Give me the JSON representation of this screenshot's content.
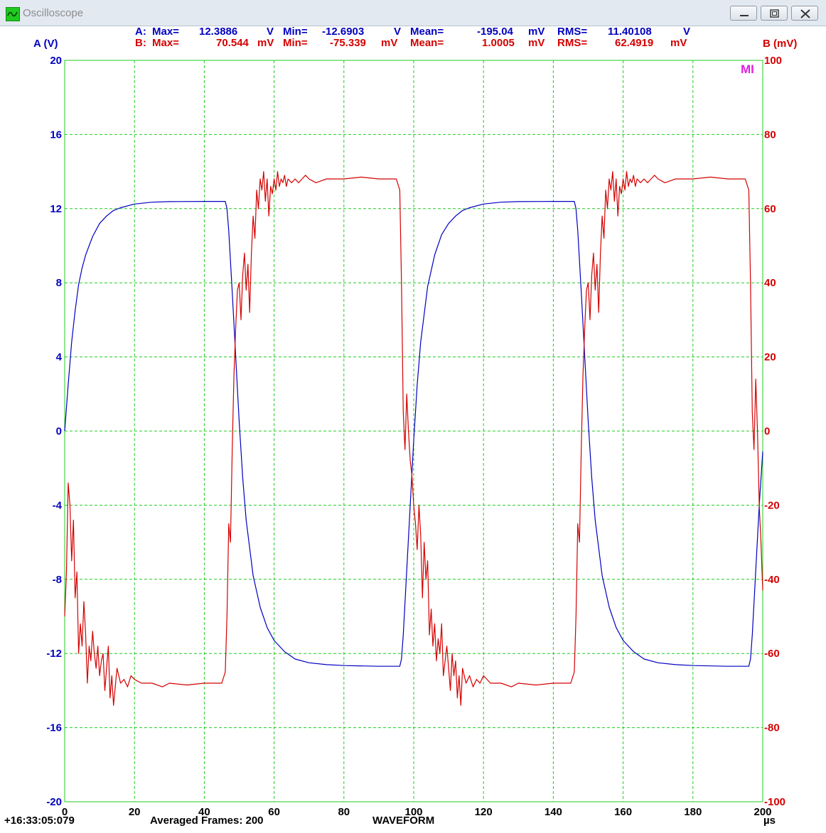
{
  "window": {
    "title": "Oscilloscope",
    "buttons": [
      "minimize",
      "maximize",
      "close"
    ]
  },
  "stats": {
    "a": {
      "label": "A:",
      "max_label": "Max=",
      "max_value": "12.3886",
      "max_unit": "V",
      "min_label": "Min=",
      "min_value": "-12.6903",
      "min_unit": "V",
      "mean_label": "Mean=",
      "mean_value": "-195.04",
      "mean_unit": "mV",
      "rms_label": "RMS=",
      "rms_value": "11.40108",
      "rms_unit": "V"
    },
    "b": {
      "label": "B:",
      "max_label": "Max=",
      "max_value": "70.544",
      "max_unit": "mV",
      "min_label": "Min=",
      "min_value": "-75.339",
      "min_unit": "mV",
      "mean_label": "Mean=",
      "mean_value": "1.0005",
      "mean_unit": "mV",
      "rms_label": "RMS=",
      "rms_value": "62.4919",
      "rms_unit": "mV"
    }
  },
  "footer": {
    "timestamp": "+16:33:05:079",
    "frames": "Averaged Frames: 200",
    "mode": "WAVEFORM"
  },
  "colors": {
    "channel_a": "#0000c0",
    "channel_b": "#d40000",
    "grid": "#22cc22",
    "marker": "#e020e0"
  },
  "chart_data": {
    "type": "line",
    "xlabel": "µs",
    "ylabel_left": "A (V)",
    "ylabel_right": "B (mV)",
    "marker_label": "MI",
    "xlim": [
      0,
      200
    ],
    "ylim_left": [
      -20,
      20
    ],
    "ylim_right": [
      -100,
      100
    ],
    "x_ticks": [
      0,
      20,
      40,
      60,
      80,
      100,
      120,
      140,
      160,
      180,
      200
    ],
    "y_ticks_left": [
      -20,
      -16,
      -12,
      -8,
      -4,
      0,
      4,
      8,
      12,
      16,
      20
    ],
    "y_ticks_right": [
      -100,
      -80,
      -60,
      -40,
      -20,
      0,
      20,
      40,
      60,
      80,
      100
    ],
    "grid": true,
    "series": [
      {
        "name": "A",
        "axis": "left",
        "x": [
          0,
          1,
          2,
          3,
          4,
          5,
          6,
          8,
          10,
          12,
          14,
          16,
          20,
          25,
          30,
          40,
          46,
          46.5,
          47,
          48,
          49,
          50,
          51,
          52,
          54,
          56,
          58,
          60,
          63,
          66,
          70,
          75,
          80,
          90,
          96,
          96.5,
          97,
          98,
          99,
          100,
          101,
          102,
          104,
          106,
          108,
          110,
          112,
          114,
          116,
          120,
          125,
          130,
          140,
          146,
          146.5,
          147,
          148,
          149,
          150,
          151,
          152,
          154,
          156,
          158,
          160,
          163,
          166,
          170,
          175,
          180,
          190,
          196,
          196.5,
          197,
          198,
          199,
          200
        ],
        "values": [
          0,
          2.5,
          4.8,
          6.5,
          7.9,
          8.8,
          9.5,
          10.5,
          11.2,
          11.6,
          11.9,
          12.05,
          12.25,
          12.35,
          12.38,
          12.39,
          12.39,
          12.0,
          10.8,
          7.5,
          4.0,
          0.5,
          -2.5,
          -4.8,
          -7.8,
          -9.5,
          -10.6,
          -11.3,
          -11.9,
          -12.3,
          -12.5,
          -12.6,
          -12.65,
          -12.69,
          -12.69,
          -12.3,
          -11.0,
          -7.5,
          -4.0,
          -0.5,
          2.5,
          4.8,
          7.8,
          9.5,
          10.6,
          11.2,
          11.6,
          11.9,
          12.05,
          12.25,
          12.35,
          12.38,
          12.39,
          12.39,
          12.0,
          10.8,
          7.5,
          4.0,
          0.5,
          -2.5,
          -4.8,
          -7.8,
          -9.5,
          -10.6,
          -11.3,
          -11.9,
          -12.3,
          -12.5,
          -12.6,
          -12.65,
          -12.69,
          -12.69,
          -12.3,
          -11.0,
          -7.5,
          -4.0,
          -1.1
        ]
      },
      {
        "name": "B",
        "axis": "right",
        "x": [
          0,
          0.5,
          1,
          1.5,
          2,
          2.5,
          3,
          3.5,
          4,
          4.5,
          5,
          5.5,
          6,
          6.5,
          7,
          7.5,
          8,
          8.5,
          9,
          9.5,
          10,
          10.5,
          11,
          11.5,
          12,
          12.5,
          13,
          13.5,
          14,
          15,
          16,
          17,
          18,
          19,
          20,
          22,
          25,
          28,
          30,
          35,
          40,
          45,
          46,
          46.5,
          47,
          47.5,
          48,
          48.5,
          49,
          49.5,
          50,
          50.5,
          51,
          51.5,
          52,
          52.5,
          53,
          53.5,
          54,
          54.5,
          55,
          55.5,
          56,
          56.5,
          57,
          57.5,
          58,
          58.5,
          59,
          59.5,
          60,
          60.5,
          61,
          61.5,
          62,
          62.5,
          63,
          63.5,
          64,
          65,
          66,
          67,
          68,
          69,
          70,
          72,
          75,
          78,
          80,
          85,
          90,
          95,
          96,
          96.5,
          97,
          97.5,
          98,
          98.5,
          99,
          99.5,
          100,
          100.5,
          101,
          101.5,
          102,
          102.5,
          103,
          103.5,
          104,
          104.5,
          105,
          105.5,
          106,
          106.5,
          107,
          107.5,
          108,
          108.5,
          109,
          109.5,
          110,
          110.5,
          111,
          111.5,
          112,
          112.5,
          113,
          113.5,
          114,
          115,
          116,
          117,
          118,
          119,
          120,
          122,
          125,
          128,
          130,
          135,
          140,
          145,
          146,
          146.5,
          147,
          147.5,
          148,
          148.5,
          149,
          149.5,
          150,
          150.5,
          151,
          151.5,
          152,
          152.5,
          153,
          153.5,
          154,
          154.5,
          155,
          155.5,
          156,
          156.5,
          157,
          157.5,
          158,
          158.5,
          159,
          159.5,
          160,
          160.5,
          161,
          161.5,
          162,
          162.5,
          163,
          163.5,
          164,
          165,
          166,
          167,
          168,
          169,
          170,
          172,
          175,
          178,
          180,
          185,
          190,
          195,
          196,
          196.5,
          197,
          197.5,
          198,
          198.5,
          199,
          199.5,
          200
        ],
        "values": [
          -50,
          -38,
          -14,
          -20,
          -35,
          -24,
          -45,
          -38,
          -60,
          -52,
          -58,
          -46,
          -55,
          -68,
          -58,
          -62,
          -54,
          -60,
          -64,
          -58,
          -66,
          -62,
          -60,
          -70,
          -64,
          -58,
          -72,
          -66,
          -74,
          -64,
          -68,
          -67,
          -69,
          -66,
          -67,
          -68,
          -68,
          -69,
          -68,
          -68.5,
          -68,
          -68,
          -65,
          -50,
          -25,
          -30,
          -5,
          15,
          28,
          38,
          40,
          30,
          42,
          48,
          38,
          45,
          32,
          48,
          58,
          52,
          65,
          60,
          68,
          65,
          70,
          62,
          68,
          58,
          66,
          64,
          68,
          65,
          70,
          66,
          68,
          67,
          69,
          66,
          68,
          67,
          68,
          67,
          68,
          69,
          68,
          67,
          68,
          68,
          68,
          68.5,
          68,
          68,
          65,
          40,
          5,
          -5,
          10,
          0,
          -8,
          -12,
          -20,
          -25,
          -32,
          -20,
          -28,
          -45,
          -30,
          -40,
          -35,
          -55,
          -48,
          -58,
          -52,
          -62,
          -56,
          -60,
          -52,
          -66,
          -62,
          -58,
          -64,
          -70,
          -60,
          -66,
          -62,
          -72,
          -66,
          -74,
          -64,
          -68,
          -66,
          -69,
          -67,
          -68,
          -66,
          -68,
          -68,
          -69,
          -68,
          -68.5,
          -68,
          -68,
          -65,
          -50,
          -25,
          -30,
          -5,
          15,
          28,
          38,
          40,
          30,
          42,
          48,
          38,
          45,
          32,
          48,
          58,
          52,
          65,
          60,
          68,
          65,
          70,
          62,
          68,
          58,
          66,
          64,
          68,
          65,
          70,
          66,
          68,
          67,
          69,
          66,
          68,
          67,
          68,
          67,
          68,
          69,
          68,
          67,
          68,
          68,
          68,
          68.5,
          68,
          68,
          65,
          40,
          5,
          -5,
          14,
          0,
          -20,
          -30,
          -43
        ]
      }
    ]
  }
}
